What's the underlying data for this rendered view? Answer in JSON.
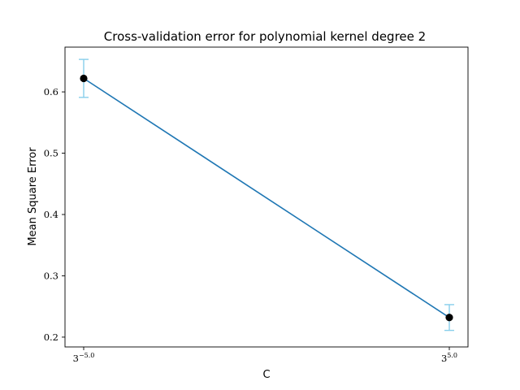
{
  "chart_data": {
    "type": "line",
    "title": "Cross-validation error for polynomial kernel degree 2",
    "xlabel": "C",
    "ylabel": "Mean Square Error",
    "x_scale": "log3",
    "x_ticks": [
      {
        "base": "3",
        "exp": "−5.0"
      },
      {
        "base": "3",
        "exp": "5.0"
      }
    ],
    "y_ticks": [
      "0.2",
      "0.3",
      "0.4",
      "0.5",
      "0.6"
    ],
    "y_tick_values": [
      0.2,
      0.3,
      0.4,
      0.5,
      0.6
    ],
    "ylim": [
      0.184,
      0.673
    ],
    "grid": false,
    "series": [
      {
        "x_exponents": [
          -5.0,
          5.0
        ],
        "y": [
          0.622,
          0.232
        ],
        "yerr": [
          0.031,
          0.021
        ]
      }
    ],
    "colors": {
      "line": "#1f77b4",
      "marker": "#000000",
      "errorbar": "#87ceeb"
    }
  }
}
